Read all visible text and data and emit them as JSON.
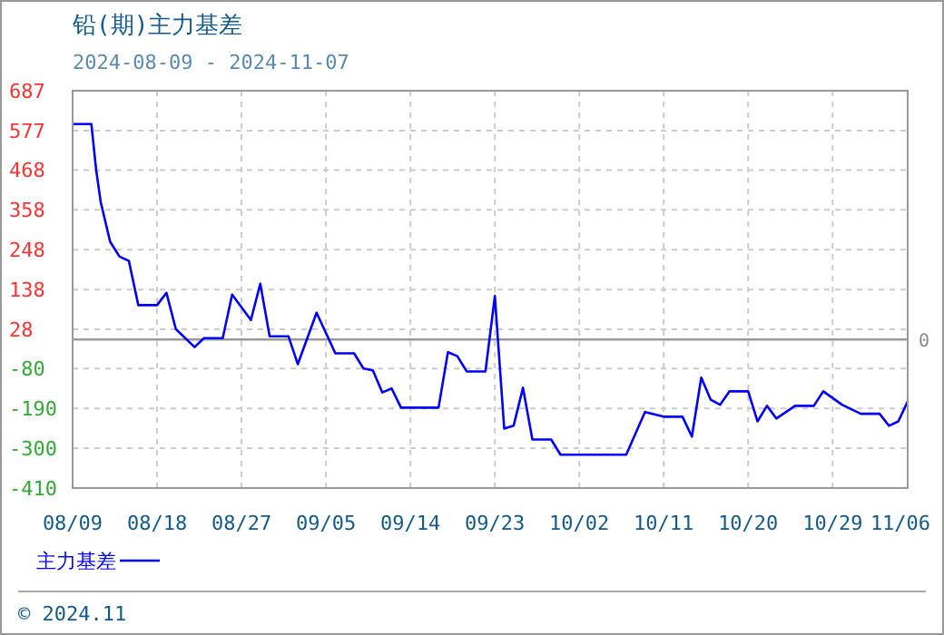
{
  "chart_data": {
    "type": "line",
    "title": "铅(期)主力基差",
    "subtitle": "2024-08-09 - 2024-11-07",
    "x": [
      "2024-08-09",
      "2024-08-11",
      "2024-08-11T12:00",
      "2024-08-12",
      "2024-08-13",
      "2024-08-14",
      "2024-08-15",
      "2024-08-16",
      "2024-08-18",
      "2024-08-19",
      "2024-08-20",
      "2024-08-22",
      "2024-08-23",
      "2024-08-25",
      "2024-08-26",
      "2024-08-28",
      "2024-08-29",
      "2024-08-30",
      "2024-09-01",
      "2024-09-02",
      "2024-09-04",
      "2024-09-06",
      "2024-09-08",
      "2024-09-09",
      "2024-09-10",
      "2024-09-11",
      "2024-09-12",
      "2024-09-13",
      "2024-09-17",
      "2024-09-18",
      "2024-09-19",
      "2024-09-20",
      "2024-09-22",
      "2024-09-23",
      "2024-09-24",
      "2024-09-25",
      "2024-09-26",
      "2024-09-27",
      "2024-09-29",
      "2024-09-30",
      "2024-10-07",
      "2024-10-09",
      "2024-10-11",
      "2024-10-13",
      "2024-10-14",
      "2024-10-15",
      "2024-10-16",
      "2024-10-17",
      "2024-10-18",
      "2024-10-20",
      "2024-10-21",
      "2024-10-22",
      "2024-10-23",
      "2024-10-25",
      "2024-10-27",
      "2024-10-28",
      "2024-10-30",
      "2024-11-01",
      "2024-11-03",
      "2024-11-04",
      "2024-11-05",
      "2024-11-06"
    ],
    "series": [
      {
        "name": "主力基差",
        "color": "#0000ff",
        "values": [
          595,
          595,
          470,
          379,
          270,
          229,
          217,
          95,
          95,
          129,
          29,
          -21,
          4,
          4,
          124,
          54,
          154,
          9,
          9,
          -68,
          74,
          -38,
          -38,
          -80,
          -85,
          -146,
          -135,
          -188,
          -188,
          -35,
          -46,
          -88,
          -88,
          120,
          -246,
          -238,
          -133,
          -276,
          -276,
          -318,
          -318,
          -200,
          -213,
          -213,
          -268,
          -105,
          -166,
          -180,
          -143,
          -143,
          -226,
          -183,
          -218,
          -183,
          -183,
          -143,
          -180,
          -205,
          -205,
          -238,
          -226,
          -171
        ]
      }
    ],
    "xlim": [
      "2024-08-09",
      "2024-11-06"
    ],
    "xticks": [
      {
        "value": "2024-08-09",
        "label": "08/09"
      },
      {
        "value": "2024-08-18",
        "label": "08/18"
      },
      {
        "value": "2024-08-27",
        "label": "08/27"
      },
      {
        "value": "2024-09-05",
        "label": "09/05"
      },
      {
        "value": "2024-09-14",
        "label": "09/14"
      },
      {
        "value": "2024-09-23",
        "label": "09/23"
      },
      {
        "value": "2024-10-02",
        "label": "10/02"
      },
      {
        "value": "2024-10-11",
        "label": "10/11"
      },
      {
        "value": "2024-10-20",
        "label": "10/20"
      },
      {
        "value": "2024-10-29",
        "label": "10/29"
      },
      {
        "value": "2024-11-06",
        "label": "11/06"
      }
    ],
    "ylim": [
      -410,
      687
    ],
    "yticks": [
      687,
      577,
      468,
      358,
      248,
      138,
      28,
      -80,
      -190,
      -300,
      -410
    ],
    "ref_lines": [
      {
        "axis": "y",
        "value": 0,
        "label": "0",
        "color": "#999999"
      }
    ],
    "annotations": [
      "© 2024.11"
    ],
    "grid": true,
    "legend": "bottom",
    "marker": "none",
    "line_style": "solid"
  }
}
